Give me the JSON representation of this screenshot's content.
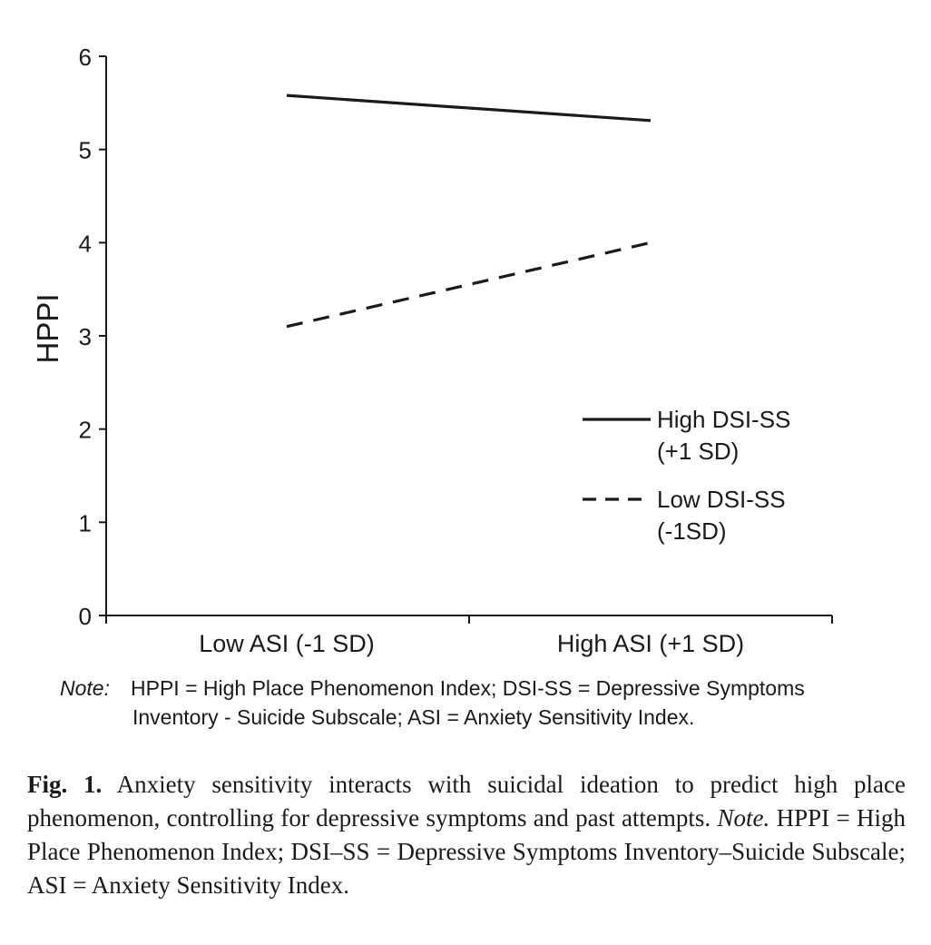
{
  "chart_data": {
    "type": "line",
    "categories": [
      "Low ASI (-1 SD)",
      "High ASI (+1 SD)"
    ],
    "series": [
      {
        "name": "High DSI-SS (+1 SD)",
        "legend_line1": "High DSI-SS",
        "legend_line2": "(+1 SD)",
        "style": "solid",
        "values": [
          5.58,
          5.31
        ]
      },
      {
        "name": "Low DSI-SS (-1SD)",
        "legend_line1": "Low DSI-SS",
        "legend_line2": "(-1SD)",
        "style": "dashed",
        "values": [
          3.1,
          4.0
        ]
      }
    ],
    "ylabel": "HPPI",
    "xlabel": "",
    "ylim": [
      0,
      6
    ],
    "yticks": [
      "0",
      "1",
      "2",
      "3",
      "4",
      "5",
      "6"
    ],
    "legend_position": "right-center",
    "color": "#1a1a1a"
  },
  "note": {
    "label": "Note:",
    "line1": "HPPI = High Place Phenomenon Index; DSI-SS = Depressive Symptoms",
    "line2": "Inventory - Suicide Subscale; ASI = Anxiety Sensitivity Index."
  },
  "caption": {
    "fig_label": "Fig. 1.",
    "text": "Anxiety sensitivity interacts with suicidal ideation to predict high place phenomenon, controlling for depressive symptoms and past attempts.",
    "note_label": "Note.",
    "note_text": "HPPI = High Place Phenomenon Index; DSI–SS = Depressive Symptoms Inventory–Suicide Subscale; ASI = Anxiety Sensitivity Index."
  }
}
